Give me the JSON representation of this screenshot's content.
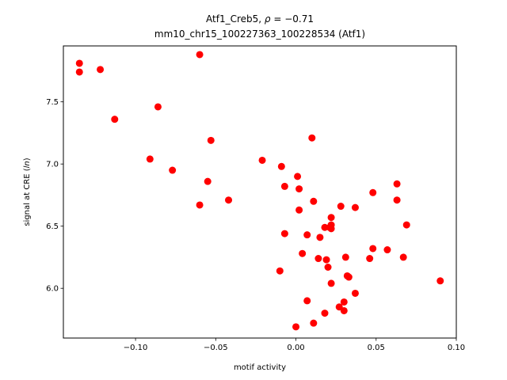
{
  "chart_data": {
    "type": "scatter",
    "title_line1_prefix": "Atf1_Creb5, ",
    "title_line1_rho": "ρ",
    "title_line1_suffix": " = −0.71",
    "title_line2": "mm10_chr15_100227363_100228534 (Atf1)",
    "xlabel": "motif activity",
    "ylabel_prefix": "signal at CRE (",
    "ylabel_italic": "ln",
    "ylabel_suffix": ")",
    "xlim": [
      -0.145,
      0.1
    ],
    "ylim": [
      5.6,
      7.95
    ],
    "xticks": [
      -0.1,
      -0.05,
      0.0,
      0.05,
      0.1
    ],
    "xtick_labels": [
      "−0.10",
      "−0.05",
      "0.00",
      "0.05",
      "0.10"
    ],
    "yticks": [
      6.0,
      6.5,
      7.0,
      7.5
    ],
    "ytick_labels": [
      "6.0",
      "6.5",
      "7.0",
      "7.5"
    ],
    "grid": false,
    "marker_color": "#ff0000",
    "points": [
      {
        "x": -0.135,
        "y": 7.81
      },
      {
        "x": -0.135,
        "y": 7.74
      },
      {
        "x": -0.122,
        "y": 7.76
      },
      {
        "x": -0.113,
        "y": 7.36
      },
      {
        "x": -0.091,
        "y": 7.04
      },
      {
        "x": -0.086,
        "y": 7.46
      },
      {
        "x": -0.077,
        "y": 6.95
      },
      {
        "x": -0.06,
        "y": 7.88
      },
      {
        "x": -0.06,
        "y": 6.67
      },
      {
        "x": -0.055,
        "y": 6.86
      },
      {
        "x": -0.053,
        "y": 7.19
      },
      {
        "x": -0.042,
        "y": 6.71
      },
      {
        "x": -0.021,
        "y": 7.03
      },
      {
        "x": -0.01,
        "y": 6.14
      },
      {
        "x": -0.009,
        "y": 6.98
      },
      {
        "x": -0.007,
        "y": 6.82
      },
      {
        "x": -0.007,
        "y": 6.44
      },
      {
        "x": 0.0,
        "y": 5.69
      },
      {
        "x": 0.001,
        "y": 6.9
      },
      {
        "x": 0.002,
        "y": 6.8
      },
      {
        "x": 0.002,
        "y": 6.63
      },
      {
        "x": 0.004,
        "y": 6.28
      },
      {
        "x": 0.007,
        "y": 6.43
      },
      {
        "x": 0.007,
        "y": 5.9
      },
      {
        "x": 0.01,
        "y": 7.21
      },
      {
        "x": 0.011,
        "y": 6.7
      },
      {
        "x": 0.011,
        "y": 5.72
      },
      {
        "x": 0.014,
        "y": 6.24
      },
      {
        "x": 0.015,
        "y": 6.41
      },
      {
        "x": 0.018,
        "y": 6.49
      },
      {
        "x": 0.018,
        "y": 5.8
      },
      {
        "x": 0.019,
        "y": 6.23
      },
      {
        "x": 0.02,
        "y": 6.17
      },
      {
        "x": 0.021,
        "y": 6.49
      },
      {
        "x": 0.022,
        "y": 6.57
      },
      {
        "x": 0.022,
        "y": 6.48
      },
      {
        "x": 0.022,
        "y": 6.51
      },
      {
        "x": 0.022,
        "y": 6.04
      },
      {
        "x": 0.027,
        "y": 5.85
      },
      {
        "x": 0.028,
        "y": 6.66
      },
      {
        "x": 0.03,
        "y": 5.89
      },
      {
        "x": 0.03,
        "y": 5.82
      },
      {
        "x": 0.031,
        "y": 6.25
      },
      {
        "x": 0.032,
        "y": 6.1
      },
      {
        "x": 0.033,
        "y": 6.09
      },
      {
        "x": 0.037,
        "y": 6.65
      },
      {
        "x": 0.037,
        "y": 5.96
      },
      {
        "x": 0.046,
        "y": 6.24
      },
      {
        "x": 0.048,
        "y": 6.77
      },
      {
        "x": 0.048,
        "y": 6.32
      },
      {
        "x": 0.057,
        "y": 6.31
      },
      {
        "x": 0.063,
        "y": 6.84
      },
      {
        "x": 0.063,
        "y": 6.71
      },
      {
        "x": 0.067,
        "y": 6.25
      },
      {
        "x": 0.069,
        "y": 6.51
      },
      {
        "x": 0.09,
        "y": 6.06
      }
    ]
  }
}
